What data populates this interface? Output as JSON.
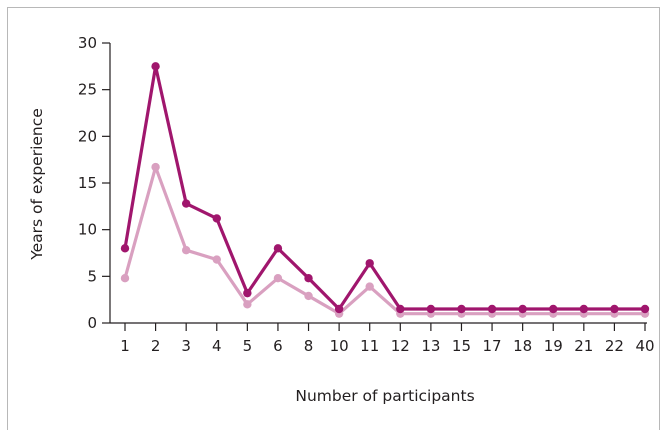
{
  "chart_data": {
    "type": "line",
    "title": "",
    "xlabel": "Number of participants",
    "ylabel": "Years of experience",
    "categories": [
      "1",
      "2",
      "3",
      "4",
      "5",
      "6",
      "8",
      "10",
      "11",
      "12",
      "13",
      "15",
      "17",
      "18",
      "19",
      "21",
      "22",
      "40"
    ],
    "ylim": [
      0,
      30
    ],
    "yticks": [
      0,
      5,
      10,
      15,
      20,
      25,
      30
    ],
    "grid": false,
    "legend": "none",
    "series": [
      {
        "color": "#a0166d",
        "values": [
          8,
          27.5,
          12.8,
          11.2,
          3.2,
          8,
          4.8,
          1.5,
          6.4,
          1.5,
          1.5,
          1.5,
          1.5,
          1.5,
          1.5,
          1.5,
          1.5,
          1.5
        ]
      },
      {
        "color": "#d9a0c0",
        "values": [
          4.8,
          16.7,
          7.8,
          6.8,
          2,
          4.8,
          2.9,
          1,
          3.9,
          1,
          1,
          1,
          1,
          1,
          1,
          1,
          1,
          1
        ]
      }
    ]
  }
}
